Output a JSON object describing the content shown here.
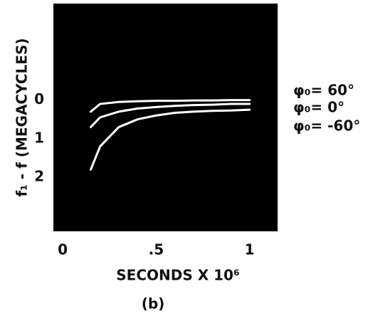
{
  "chart_data": {
    "type": "line",
    "y_label": "f₁ - f (MEGACYCLES)",
    "x_label": "SECONDS X 10⁶",
    "caption": "(b)",
    "x": [
      0.15,
      0.2,
      0.3,
      0.4,
      0.5,
      0.6,
      0.7,
      0.8,
      0.9,
      1.0
    ],
    "series": [
      {
        "name": "φ₀= 60°",
        "color": "#ffffff",
        "values": [
          0.3,
          0.1,
          0.05,
          0.03,
          0.02,
          0.02,
          0.01,
          0.01,
          0.0,
          0.0
        ]
      },
      {
        "name": "φ₀= 0°",
        "color": "#ffffff",
        "values": [
          0.7,
          0.45,
          0.3,
          0.22,
          0.18,
          0.15,
          0.13,
          0.12,
          0.1,
          0.1
        ]
      },
      {
        "name": "φ₀= -60°",
        "color": "#ffffff",
        "values": [
          1.8,
          1.2,
          0.7,
          0.5,
          0.4,
          0.33,
          0.3,
          0.28,
          0.27,
          0.25
        ]
      }
    ],
    "xlim": [
      -0.05,
      1.15
    ],
    "xticks": [
      0,
      {
        "value": 0.5,
        "label": ".5"
      },
      1
    ],
    "ylim": [
      -2.5,
      3.4
    ],
    "yticks": [
      0,
      1,
      2
    ],
    "invert_y": true,
    "background": "#000000"
  }
}
